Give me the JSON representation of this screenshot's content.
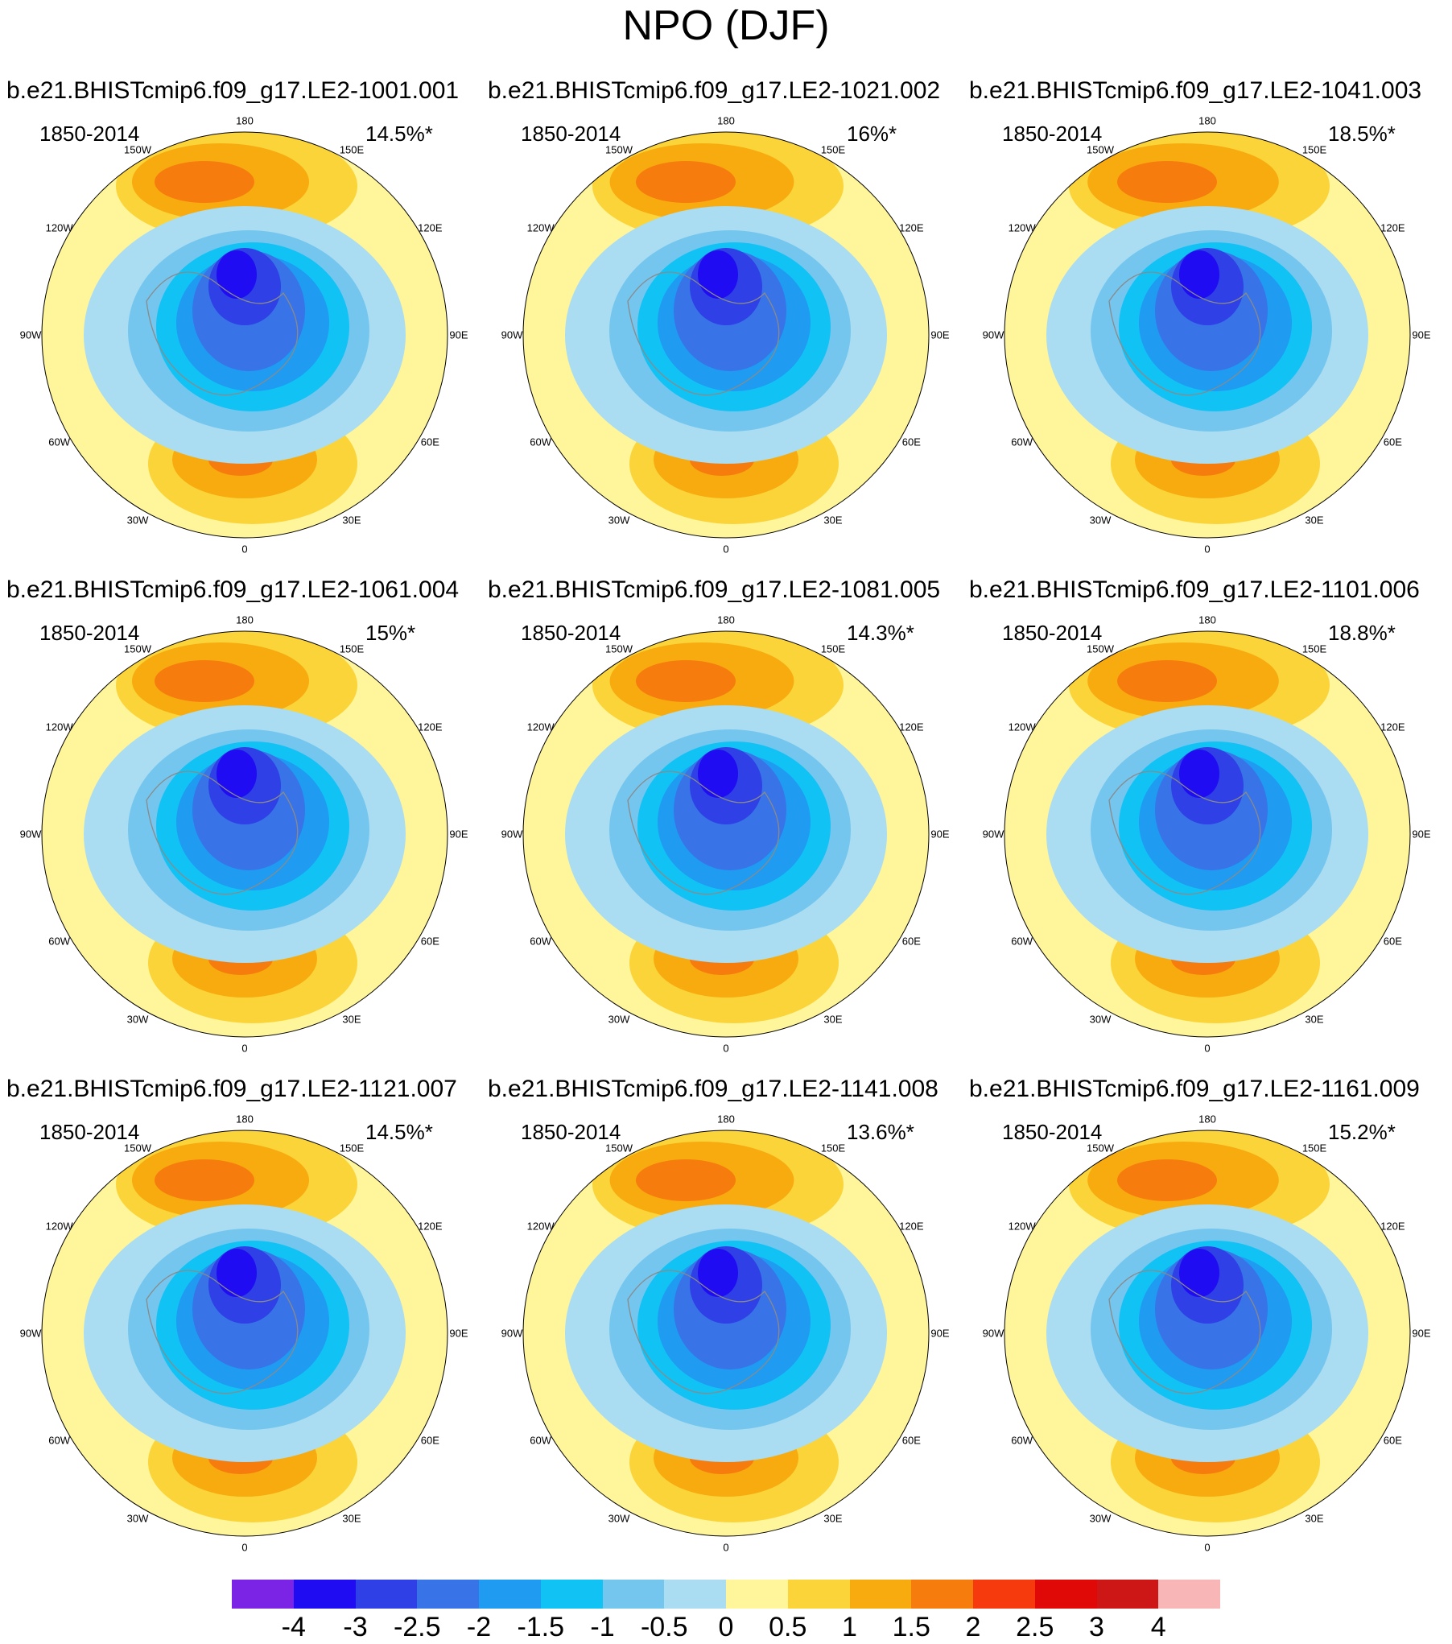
{
  "title": "NPO (DJF)",
  "panels": [
    {
      "title": "b.e21.BHISTcmip6.f09_g17.LE2-1001.001",
      "period": "1850-2014",
      "variance": "14.5%*"
    },
    {
      "title": "b.e21.BHISTcmip6.f09_g17.LE2-1021.002",
      "period": "1850-2014",
      "variance": "16%*"
    },
    {
      "title": "b.e21.BHISTcmip6.f09_g17.LE2-1041.003",
      "period": "1850-2014",
      "variance": "18.5%*"
    },
    {
      "title": "b.e21.BHISTcmip6.f09_g17.LE2-1061.004",
      "period": "1850-2014",
      "variance": "15%*"
    },
    {
      "title": "b.e21.BHISTcmip6.f09_g17.LE2-1081.005",
      "period": "1850-2014",
      "variance": "14.3%*"
    },
    {
      "title": "b.e21.BHISTcmip6.f09_g17.LE2-1101.006",
      "period": "1850-2014",
      "variance": "18.8%*"
    },
    {
      "title": "b.e21.BHISTcmip6.f09_g17.LE2-1121.007",
      "period": "1850-2014",
      "variance": "14.5%*"
    },
    {
      "title": "b.e21.BHISTcmip6.f09_g17.LE2-1141.008",
      "period": "1850-2014",
      "variance": "13.6%*"
    },
    {
      "title": "b.e21.BHISTcmip6.f09_g17.LE2-1161.009",
      "period": "1850-2014",
      "variance": "15.2%*"
    }
  ],
  "longitude_labels": [
    "180",
    "150E",
    "120E",
    "90E",
    "60E",
    "30E",
    "0",
    "30W",
    "60W",
    "90W",
    "120W",
    "150W"
  ],
  "chart_data": {
    "type": "heatmap",
    "projection": "north polar stereographic",
    "title": "NPO (DJF)",
    "colorbar": {
      "levels": [
        "-4",
        "-3",
        "-2.5",
        "-2",
        "-1.5",
        "-1",
        "-0.5",
        "0",
        "0.5",
        "1",
        "1.5",
        "2",
        "2.5",
        "3",
        "4"
      ],
      "colors": [
        "#7b24e6",
        "#1f0cf2",
        "#2e40e6",
        "#3873e8",
        "#1f9bf2",
        "#11c2f5",
        "#74c6ee",
        "#aadcf2",
        "#fff59a",
        "#fbd43a",
        "#f8ab0f",
        "#f77c0e",
        "#f63a0e",
        "#e10808",
        "#cd1717",
        "#f8b6b6"
      ]
    }
  }
}
